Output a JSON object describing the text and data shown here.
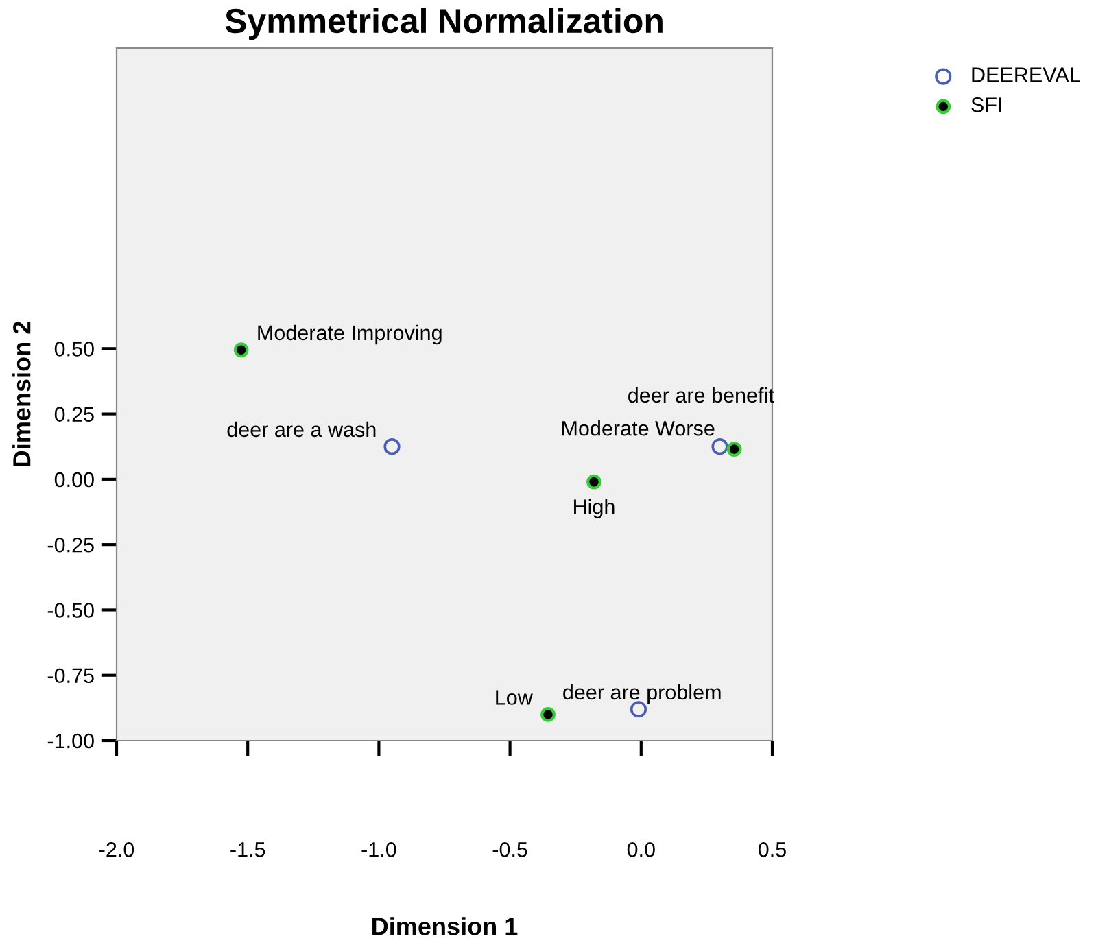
{
  "chart_data": {
    "type": "scatter",
    "title": "Symmetrical Normalization",
    "xlabel": "Dimension 1",
    "ylabel": "Dimension 2",
    "series": [
      {
        "name": "DEEREVAL",
        "color": "#4a5eb4",
        "x": [
          -0.95,
          0.3,
          -0.01
        ],
        "values": [
          0.125,
          0.125,
          -0.88
        ]
      },
      {
        "name": "SFI",
        "color": "#000000",
        "x": [
          -1.525,
          0.355,
          -0.18,
          -0.355
        ],
        "values": [
          0.495,
          0.115,
          -0.01,
          -0.9
        ]
      }
    ],
    "annotations": [
      {
        "text": "deer are a wash",
        "x": -0.95,
        "y": 0.125
      },
      {
        "text": "deer are benefit",
        "x": 0.3,
        "y": 0.125
      },
      {
        "text": "deer are problem",
        "x": -0.01,
        "y": -0.88
      },
      {
        "text": "Moderate Improving",
        "x": -1.525,
        "y": 0.495
      },
      {
        "text": "Moderate Worse",
        "x": 0.355,
        "y": 0.115
      },
      {
        "text": "High",
        "x": -0.18,
        "y": -0.01
      },
      {
        "text": "Low",
        "x": -0.355,
        "y": -0.9
      }
    ],
    "xlim": [
      -2.0,
      0.5
    ],
    "ylim": [
      -1.0,
      1.65
    ],
    "xticks": [
      {
        "value": -2.0,
        "label": "-2.0"
      },
      {
        "value": -1.5,
        "label": "-1.5"
      },
      {
        "value": -1.0,
        "label": "-1.0"
      },
      {
        "value": -0.5,
        "label": "-0.5"
      },
      {
        "value": 0.0,
        "label": "0.0"
      },
      {
        "value": 0.5,
        "label": "0.5"
      }
    ],
    "yticks": [
      {
        "value": 0.5,
        "label": "0.50"
      },
      {
        "value": 0.25,
        "label": "0.25"
      },
      {
        "value": 0.0,
        "label": "0.00"
      },
      {
        "value": -0.25,
        "label": "-0.25"
      },
      {
        "value": -0.5,
        "label": "-0.50"
      },
      {
        "value": -0.75,
        "label": "-0.75"
      },
      {
        "value": -1.0,
        "label": "-1.00"
      }
    ],
    "grid": false,
    "legend": "top right",
    "marker": "circle"
  }
}
